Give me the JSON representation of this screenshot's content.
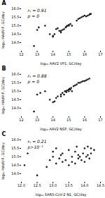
{
  "chart_data": [
    {
      "type": "scatter",
      "title": "A",
      "annotations": [
        "rₛ = 0.91",
        "p = 0"
      ],
      "xlabel": "log₁₀ AAV2 VP1, GC/day",
      "ylabel": "log₁₀ HAdV-F, GC/day",
      "xlim": [
        12,
        17
      ],
      "ylim": [
        13.5,
        16.0
      ],
      "xticks": [
        12,
        13,
        14,
        15,
        16,
        17
      ],
      "yticks": [
        {
          "value": 14.0,
          "label": "14.0"
        },
        14.5,
        {
          "value": 15.0,
          "label": "15.0"
        },
        15.5,
        {
          "value": 16.0,
          "label": "16.0"
        }
      ],
      "color": "#1a1a1a",
      "grid": false,
      "x": [
        12.8,
        13.0,
        13.1,
        13.5,
        13.8,
        14.0,
        14.0,
        14.1,
        14.2,
        14.3,
        14.4,
        14.5,
        14.5,
        14.6,
        14.7,
        14.8,
        14.85,
        14.9,
        15.0,
        15.0,
        15.1,
        15.2,
        15.5,
        15.6,
        15.7,
        15.8,
        15.9,
        16.0,
        16.1,
        16.2,
        16.3,
        16.35,
        16.4
      ],
      "y": [
        13.8,
        14.75,
        14.9,
        15.0,
        14.5,
        14.35,
        14.4,
        14.5,
        14.8,
        14.85,
        14.7,
        14.6,
        14.7,
        14.75,
        14.8,
        14.9,
        14.95,
        15.0,
        15.0,
        15.05,
        15.1,
        15.0,
        15.3,
        15.4,
        15.45,
        15.5,
        15.55,
        15.6,
        15.55,
        15.6,
        15.65,
        15.7,
        15.7
      ]
    },
    {
      "type": "scatter",
      "title": "B",
      "annotations": [
        "rₛ = 0.88",
        "p = 0"
      ],
      "xlabel": "log₁₀ AAV2 NSP, GC/day",
      "ylabel": "log₁₀ HAdV-F, GC/day",
      "xlim": [
        12,
        17
      ],
      "ylim": [
        13.5,
        16.0
      ],
      "xticks": [
        12,
        13,
        14,
        15,
        16,
        17
      ],
      "yticks": [
        {
          "value": 14.0,
          "label": "14.0"
        },
        14.5,
        {
          "value": 15.0,
          "label": "15.0"
        },
        15.5,
        {
          "value": 16.0,
          "label": "16.0"
        }
      ],
      "color": "#1a1a1a",
      "grid": false,
      "x": [
        12.8,
        13.0,
        13.2,
        13.5,
        13.8,
        14.0,
        14.1,
        14.2,
        14.3,
        14.5,
        14.5,
        14.6,
        14.7,
        14.75,
        14.8,
        14.85,
        14.9,
        15.0,
        15.0,
        15.05,
        15.1,
        15.15,
        15.2,
        15.3,
        15.4,
        15.5,
        15.6,
        15.7,
        15.8,
        15.9,
        16.0,
        16.1,
        16.2,
        16.3
      ],
      "y": [
        13.8,
        14.8,
        14.9,
        15.0,
        14.5,
        14.35,
        14.4,
        14.6,
        14.7,
        14.7,
        14.8,
        14.9,
        14.8,
        15.0,
        15.0,
        14.95,
        15.05,
        15.0,
        15.1,
        15.15,
        15.1,
        15.2,
        15.0,
        15.3,
        15.35,
        15.4,
        15.5,
        15.5,
        15.55,
        15.6,
        15.6,
        15.65,
        15.7,
        15.75
      ]
    },
    {
      "type": "scatter",
      "title": "C",
      "annotations": [
        "rₛ = 0.21",
        "p>10⁻¹"
      ],
      "xlabel": "log₁₀ SARS-CoV-2 N1, GC/day",
      "ylabel": "log₁₀ HAdV-F, GC/day",
      "xlim": [
        12,
        14.5
      ],
      "ylim": [
        13.5,
        16.0
      ],
      "xticks": [
        {
          "value": 12,
          "label": "12.0"
        },
        12.5,
        {
          "value": 13,
          "label": "13.0"
        },
        13.5,
        {
          "value": 14,
          "label": "14.0"
        },
        14.5
      ],
      "yticks": [
        {
          "value": 14.0,
          "label": "14.0"
        },
        14.5,
        {
          "value": 15.0,
          "label": "15.0"
        },
        15.5,
        {
          "value": 16.0,
          "label": "16.0"
        }
      ],
      "color": "#1a1a1a",
      "grid": false,
      "x": [
        12.1,
        12.2,
        12.5,
        12.8,
        12.9,
        13.0,
        13.0,
        13.1,
        13.1,
        13.2,
        13.25,
        13.3,
        13.3,
        13.4,
        13.5,
        13.5,
        13.6,
        13.6,
        13.7,
        13.7,
        13.75,
        13.8,
        13.8,
        13.85,
        13.9,
        13.95,
        14.0,
        14.0,
        14.05,
        14.1,
        14.1,
        14.15,
        14.2,
        14.2,
        14.3
      ],
      "y": [
        14.5,
        15.2,
        13.9,
        14.4,
        14.8,
        15.0,
        15.3,
        14.6,
        15.5,
        14.9,
        15.1,
        14.7,
        15.2,
        14.8,
        14.5,
        15.4,
        14.7,
        15.0,
        14.6,
        15.3,
        15.6,
        14.9,
        15.1,
        15.0,
        14.8,
        15.2,
        14.7,
        15.5,
        15.0,
        15.1,
        15.6,
        14.9,
        15.2,
        15.5,
        15.4
      ]
    }
  ]
}
